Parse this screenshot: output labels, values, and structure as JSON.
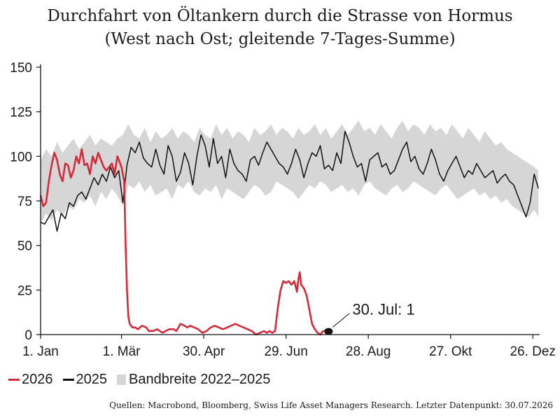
{
  "chart_data": {
    "type": "line",
    "title": "Durchfahrt von Öltankern durch die Strasse von Hormus",
    "subtitle": "(West nach Ost; gleitende 7-Tages-Summe)",
    "x_tick_labels": [
      "1. Jan",
      "1. Mär",
      "30. Apr",
      "29. Jun",
      "28. Aug",
      "27. Okt",
      "26. Dez"
    ],
    "x_tick_days": [
      1,
      60,
      120,
      180,
      240,
      300,
      360
    ],
    "xlim": [
      1,
      365
    ],
    "y_ticks": [
      0,
      25,
      50,
      75,
      100,
      125,
      150
    ],
    "ylim": [
      0,
      150
    ],
    "grid": false,
    "legend_position": "bottom-left",
    "annotation": {
      "label": "30. Jul: 1",
      "x_day": 211,
      "y": 1
    },
    "series": [
      {
        "name": "2026",
        "color": "#d42a3a",
        "x": [
          1,
          3,
          5,
          7,
          9,
          11,
          13,
          15,
          17,
          19,
          21,
          23,
          25,
          27,
          29,
          31,
          33,
          35,
          37,
          39,
          41,
          43,
          45,
          47,
          49,
          51,
          53,
          55,
          57,
          59,
          60,
          61,
          62,
          63,
          64,
          65,
          66,
          67,
          68,
          70,
          72,
          75,
          78,
          80,
          83,
          86,
          88,
          90,
          92,
          95,
          98,
          100,
          103,
          106,
          108,
          110,
          113,
          116,
          119,
          122,
          125,
          128,
          131,
          134,
          137,
          140,
          143,
          146,
          149,
          152,
          155,
          158,
          161,
          164,
          166,
          168,
          170,
          172,
          174,
          176,
          178,
          180,
          182,
          184,
          186,
          188,
          189,
          190,
          191,
          193,
          195,
          197,
          199,
          201,
          203,
          205,
          207,
          209,
          211
        ],
        "y": [
          78,
          72,
          74,
          86,
          95,
          102,
          98,
          90,
          86,
          96,
          95,
          88,
          92,
          100,
          96,
          104,
          95,
          96,
          90,
          100,
          96,
          102,
          98,
          94,
          92,
          94,
          96,
          90,
          100,
          96,
          94,
          90,
          86,
          50,
          25,
          10,
          6,
          5,
          4,
          4,
          3,
          5,
          4,
          2,
          2,
          3,
          2,
          1,
          2,
          3,
          3,
          2,
          6,
          5,
          4,
          5,
          4,
          3,
          1,
          2,
          4,
          5,
          4,
          3,
          4,
          5,
          6,
          5,
          4,
          3,
          2,
          0,
          1,
          2,
          1,
          2,
          1,
          2,
          15,
          25,
          30,
          29,
          30,
          28,
          30,
          24,
          31,
          35,
          28,
          26,
          22,
          14,
          6,
          3,
          1,
          0,
          2,
          2,
          1
        ]
      },
      {
        "name": "2025",
        "color": "#111111",
        "x": [
          1,
          4,
          7,
          10,
          13,
          16,
          19,
          22,
          25,
          28,
          31,
          34,
          37,
          40,
          43,
          46,
          49,
          52,
          55,
          58,
          61,
          64,
          67,
          70,
          73,
          76,
          79,
          82,
          85,
          88,
          91,
          94,
          97,
          100,
          103,
          106,
          109,
          112,
          115,
          118,
          121,
          124,
          127,
          130,
          133,
          136,
          139,
          142,
          145,
          148,
          151,
          154,
          157,
          160,
          163,
          166,
          169,
          172,
          175,
          178,
          181,
          184,
          187,
          190,
          193,
          196,
          199,
          202,
          205,
          208,
          211,
          214,
          217,
          220,
          223,
          226,
          229,
          232,
          235,
          238,
          241,
          244,
          247,
          250,
          253,
          256,
          259,
          262,
          265,
          268,
          271,
          274,
          277,
          280,
          283,
          286,
          289,
          292,
          295,
          298,
          301,
          304,
          307,
          310,
          313,
          316,
          319,
          322,
          325,
          328,
          331,
          334,
          337,
          340,
          343,
          346,
          349,
          352,
          355,
          358,
          361,
          364
        ],
        "y": [
          63,
          62,
          66,
          70,
          58,
          68,
          65,
          74,
          72,
          78,
          80,
          76,
          82,
          88,
          84,
          90,
          86,
          94,
          88,
          92,
          74,
          95,
          105,
          102,
          108,
          99,
          96,
          94,
          104,
          95,
          90,
          106,
          100,
          86,
          91,
          102,
          96,
          84,
          100,
          112,
          106,
          94,
          110,
          96,
          100,
          88,
          104,
          96,
          92,
          90,
          86,
          98,
          100,
          95,
          102,
          108,
          104,
          100,
          96,
          94,
          90,
          96,
          104,
          98,
          88,
          96,
          102,
          100,
          106,
          93,
          95,
          92,
          102,
          96,
          114,
          108,
          100,
          94,
          96,
          86,
          98,
          100,
          102,
          94,
          96,
          90,
          92,
          98,
          104,
          108,
          97,
          100,
          93,
          90,
          96,
          104,
          98,
          90,
          86,
          92,
          96,
          100,
          94,
          88,
          92,
          90,
          96,
          92,
          88,
          90,
          92,
          85,
          88,
          90,
          86,
          84,
          78,
          72,
          66,
          74,
          90,
          82
        ]
      },
      {
        "name": "Bandbreite 2022–2025",
        "color": "#d6d6d6",
        "type": "band",
        "x": [
          1,
          5,
          9,
          13,
          17,
          21,
          25,
          29,
          33,
          37,
          41,
          45,
          49,
          53,
          57,
          61,
          65,
          69,
          73,
          77,
          81,
          85,
          89,
          93,
          97,
          101,
          105,
          109,
          113,
          117,
          121,
          125,
          129,
          133,
          137,
          141,
          145,
          149,
          153,
          157,
          161,
          165,
          169,
          173,
          177,
          181,
          185,
          189,
          193,
          197,
          201,
          205,
          209,
          213,
          217,
          221,
          225,
          229,
          233,
          237,
          241,
          245,
          249,
          253,
          257,
          261,
          265,
          269,
          273,
          277,
          281,
          285,
          289,
          293,
          297,
          301,
          305,
          309,
          313,
          317,
          321,
          325,
          329,
          333,
          337,
          341,
          345,
          349,
          353,
          357,
          361,
          364
        ],
        "lower": [
          62,
          68,
          64,
          70,
          66,
          72,
          70,
          76,
          74,
          78,
          72,
          80,
          76,
          82,
          78,
          72,
          84,
          82,
          86,
          80,
          84,
          78,
          80,
          82,
          76,
          84,
          82,
          86,
          80,
          78,
          82,
          80,
          84,
          76,
          82,
          80,
          78,
          76,
          80,
          84,
          82,
          78,
          80,
          86,
          84,
          82,
          80,
          76,
          80,
          84,
          82,
          86,
          84,
          80,
          82,
          84,
          80,
          82,
          78,
          84,
          86,
          82,
          80,
          78,
          82,
          84,
          80,
          82,
          86,
          84,
          82,
          80,
          78,
          82,
          84,
          80,
          76,
          78,
          80,
          82,
          78,
          80,
          76,
          78,
          74,
          76,
          72,
          70,
          68,
          66,
          70,
          66
        ],
        "upper": [
          98,
          104,
          100,
          108,
          102,
          106,
          110,
          104,
          108,
          112,
          106,
          110,
          108,
          106,
          110,
          112,
          118,
          112,
          110,
          116,
          108,
          114,
          110,
          112,
          116,
          110,
          114,
          112,
          108,
          116,
          112,
          110,
          118,
          112,
          116,
          110,
          114,
          112,
          108,
          116,
          112,
          114,
          118,
          112,
          116,
          114,
          110,
          116,
          112,
          114,
          118,
          112,
          116,
          110,
          114,
          118,
          112,
          116,
          120,
          114,
          116,
          112,
          118,
          114,
          110,
          116,
          120,
          114,
          118,
          116,
          112,
          118,
          114,
          116,
          112,
          118,
          114,
          110,
          116,
          112,
          108,
          114,
          110,
          106,
          108,
          104,
          102,
          100,
          98,
          96,
          94,
          92
        ]
      }
    ],
    "legend": [
      "2026",
      "2025",
      "Bandbreite 2022–2025"
    ]
  },
  "source": "Quellen: Macrobond, Bloomberg, Swiss Life Asset Managers Research. Letzter Datenpunkt: 30.07.2026"
}
